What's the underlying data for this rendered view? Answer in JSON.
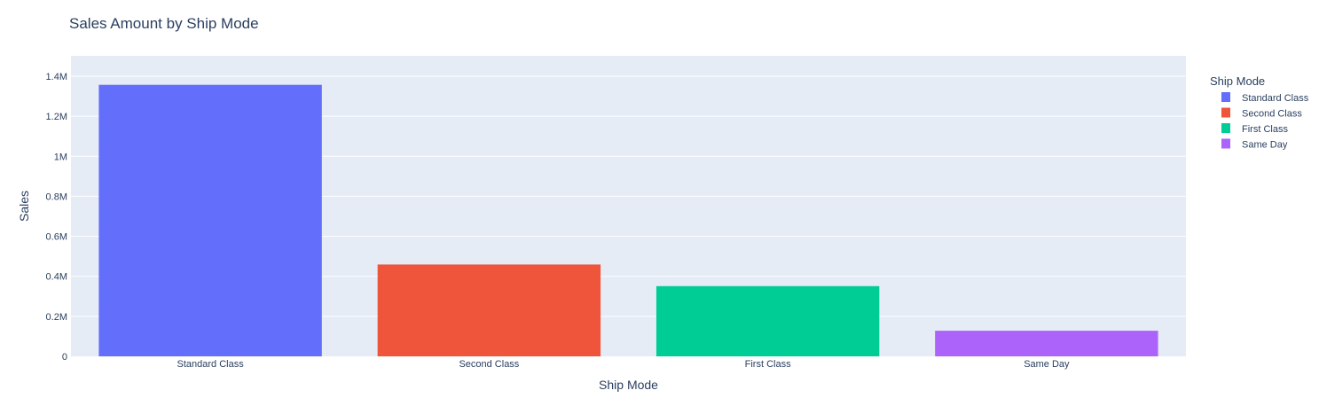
{
  "chart_data": {
    "type": "bar",
    "title": "Sales Amount by Ship Mode",
    "xlabel": "Ship Mode",
    "ylabel": "Sales",
    "categories": [
      "Standard Class",
      "Second Class",
      "First Class",
      "Same Day"
    ],
    "series": [
      {
        "name": "Standard Class",
        "category": "Standard Class",
        "value": 1357000,
        "color": "#636efa"
      },
      {
        "name": "Second Class",
        "category": "Second Class",
        "value": 459000,
        "color": "#ef553b"
      },
      {
        "name": "First Class",
        "category": "First Class",
        "value": 351000,
        "color": "#00cc96"
      },
      {
        "name": "Same Day",
        "category": "Same Day",
        "value": 128000,
        "color": "#ab63fa"
      }
    ],
    "ylim": [
      0,
      1400000
    ],
    "yticks": [
      0,
      200000,
      400000,
      600000,
      800000,
      1000000,
      1200000,
      1400000
    ],
    "ytick_labels": [
      "0",
      "0.2M",
      "0.4M",
      "0.6M",
      "0.8M",
      "1M",
      "1.2M",
      "1.4M"
    ],
    "grid": true,
    "plot_bgcolor": "#e5ecf6",
    "legend_title": "Ship Mode",
    "legend_position": "top-right"
  }
}
